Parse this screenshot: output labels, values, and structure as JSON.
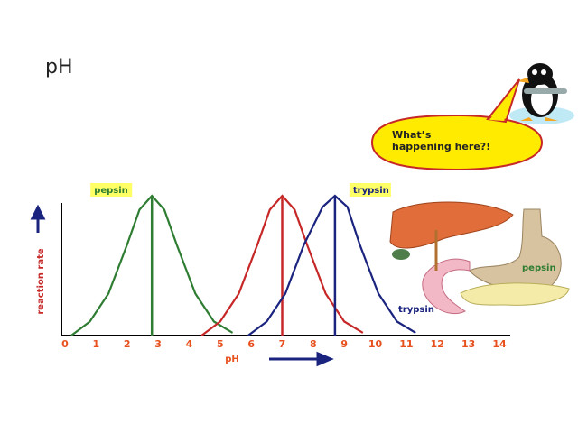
{
  "slide_title": "pH",
  "speech_bubble": {
    "lines": [
      "What’s",
      "happening here?!"
    ]
  },
  "diagram_labels": [
    "pepsin",
    "trypsin"
  ],
  "chart_data": {
    "type": "line",
    "xlabel": "pH",
    "ylabel": "reaction rate",
    "xlim": [
      0,
      14
    ],
    "ylim": [
      0,
      1
    ],
    "xticks": [
      0,
      1,
      2,
      3,
      4,
      5,
      6,
      7,
      8,
      9,
      10,
      11,
      12,
      13,
      14
    ],
    "series": [
      {
        "name": "pepsin",
        "color": "#2e7d32",
        "optimum": 2.8,
        "x": [
          0.2,
          0.8,
          1.4,
          2.0,
          2.4,
          2.8,
          3.2,
          3.6,
          4.2,
          4.8,
          5.4
        ],
        "values": [
          0,
          0.1,
          0.3,
          0.65,
          0.9,
          1,
          0.9,
          0.65,
          0.3,
          0.1,
          0.02
        ]
      },
      {
        "color": "#c62828",
        "optimum": 7.0,
        "x": [
          4.4,
          5.0,
          5.6,
          6.2,
          6.6,
          7.0,
          7.4,
          7.8,
          8.4,
          9.0,
          9.6
        ],
        "values": [
          0,
          0.1,
          0.3,
          0.65,
          0.9,
          1,
          0.9,
          0.65,
          0.3,
          0.1,
          0.02
        ]
      },
      {
        "name": "trypsin",
        "color": "#1a237e",
        "optimum": 8.7,
        "x": [
          5.9,
          6.5,
          7.1,
          7.7,
          8.3,
          8.7,
          9.1,
          9.5,
          10.1,
          10.7,
          11.3
        ],
        "values": [
          0,
          0.1,
          0.3,
          0.65,
          0.92,
          1,
          0.92,
          0.65,
          0.3,
          0.1,
          0.02
        ]
      }
    ]
  }
}
